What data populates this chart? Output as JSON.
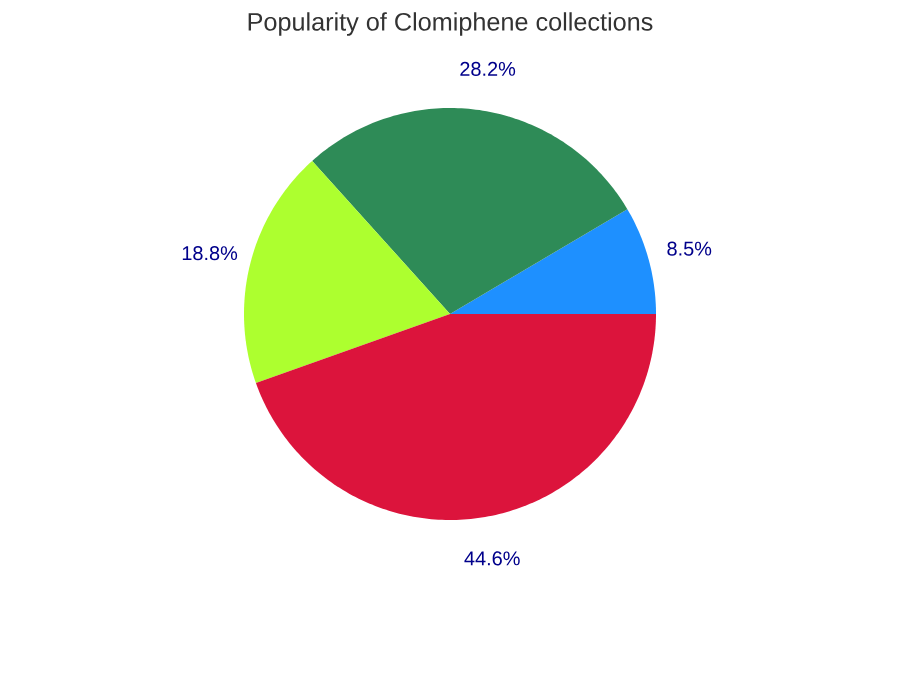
{
  "chart_data": {
    "type": "pie",
    "title": "Popularity of Clomiphene collections",
    "categories": [
      null,
      null,
      null,
      null
    ],
    "values": [
      8.5,
      28.2,
      18.8,
      44.6
    ],
    "colors": [
      "#1e90ff",
      "#2e8b57",
      "#adff2f",
      "#dc143c"
    ],
    "value_labels": [
      "8.5%",
      "28.2%",
      "18.8%",
      "44.6%"
    ]
  }
}
